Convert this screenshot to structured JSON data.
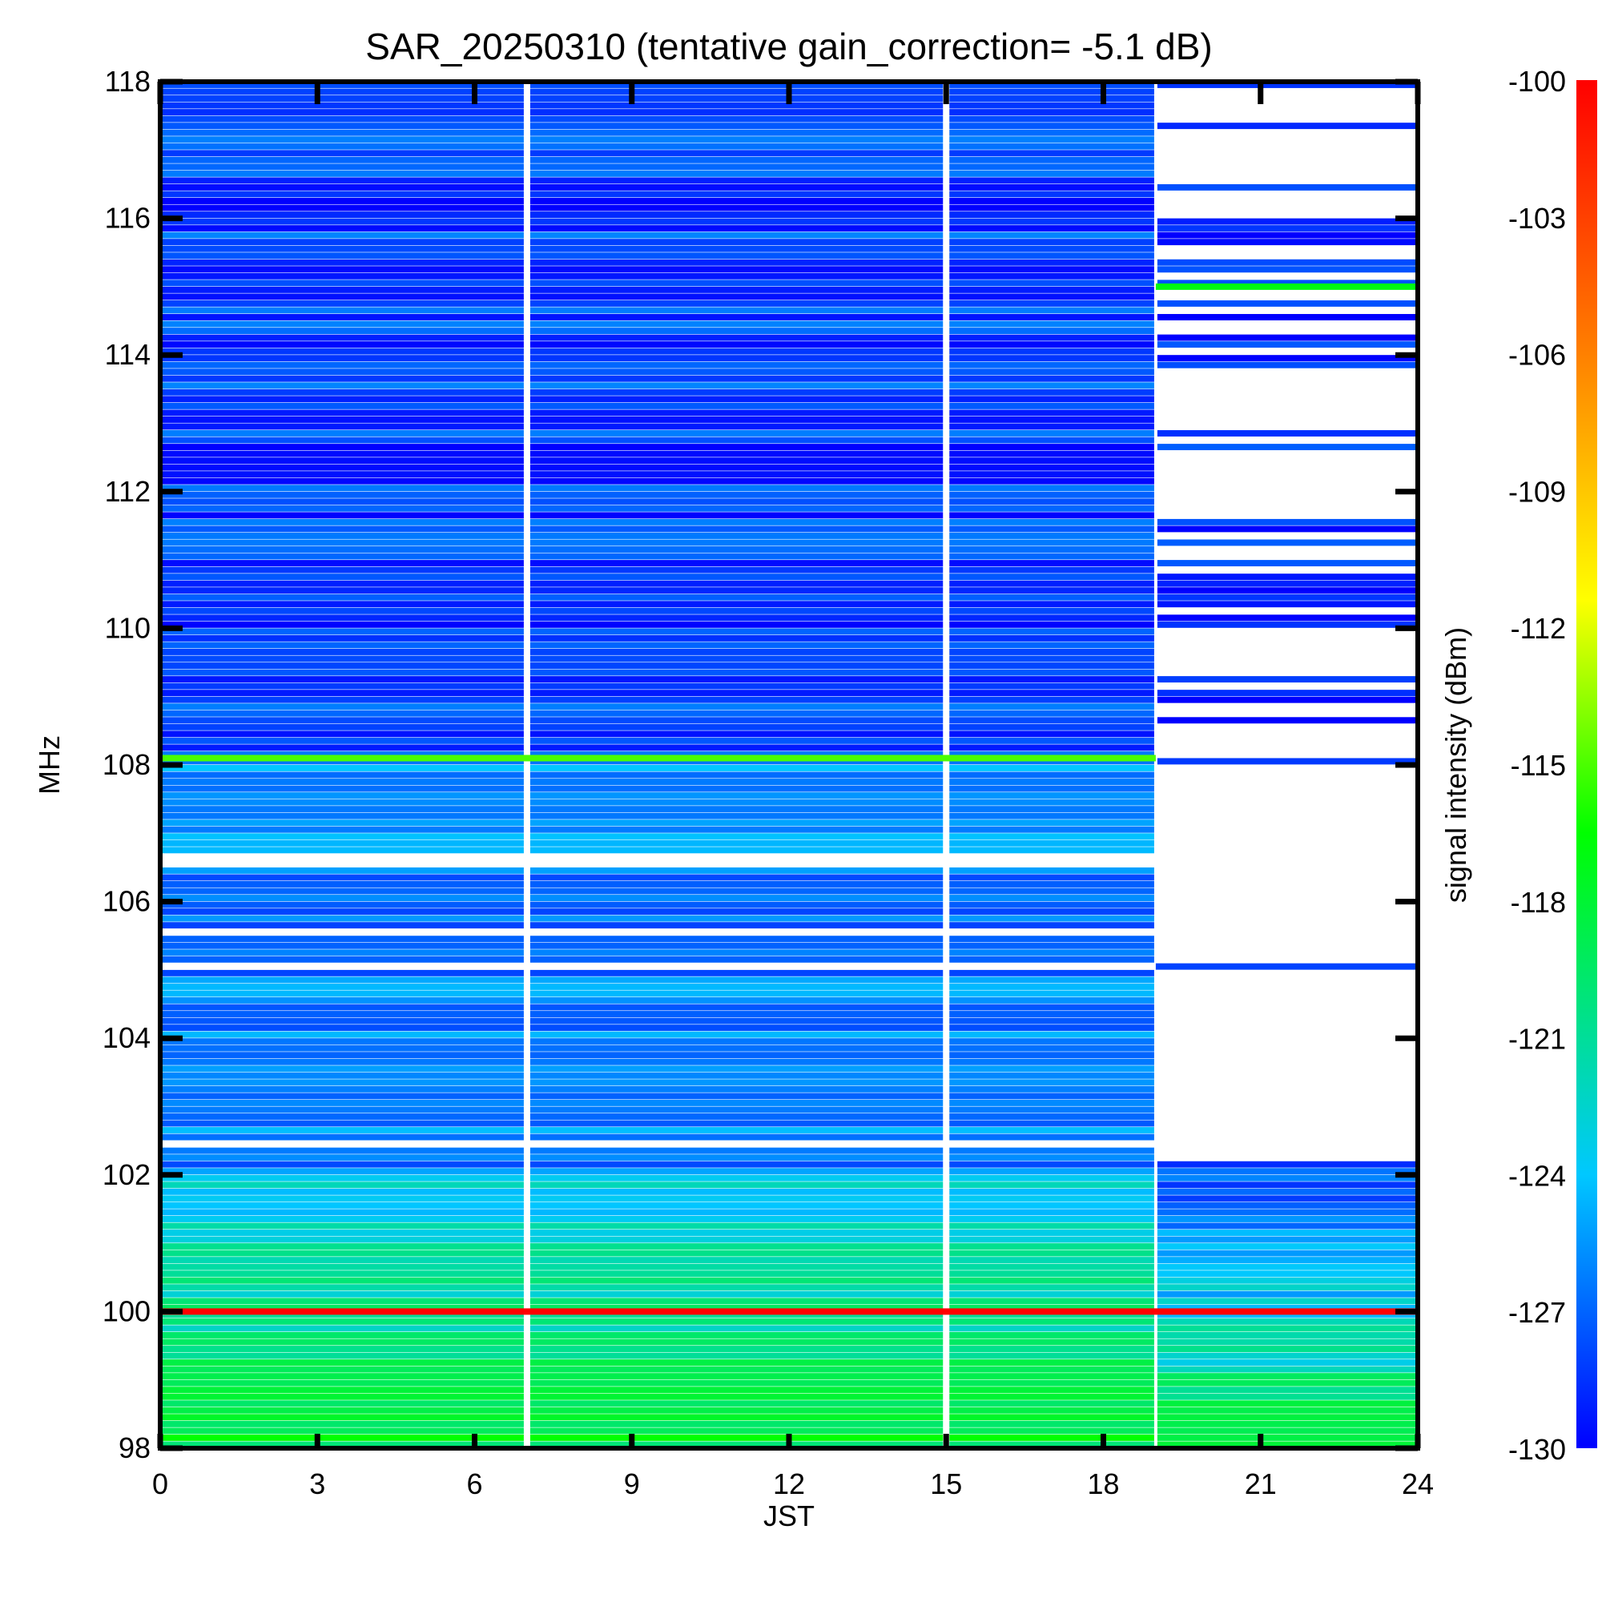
{
  "chart_data": {
    "type": "heatmap",
    "title": "SAR_20250310 (tentative gain_correction= -5.1 dB)",
    "xlabel": "JST",
    "ylabel": "MHz",
    "xlim": [
      0,
      24
    ],
    "ylim": [
      98,
      118
    ],
    "x_ticks": [
      0,
      3,
      6,
      9,
      12,
      15,
      18,
      21,
      24
    ],
    "y_ticks": [
      98,
      100,
      102,
      104,
      106,
      108,
      110,
      112,
      114,
      116,
      118
    ],
    "colorbar": {
      "label": "signal intensity (dBm)",
      "range": [
        -130,
        -100
      ],
      "ticks": [
        -100,
        -103,
        -106,
        -109,
        -112,
        -115,
        -118,
        -121,
        -124,
        -127,
        -130
      ],
      "colormap": [
        "#0000ff",
        "#00c8ff",
        "#00ff00",
        "#ffff00",
        "#ff8000",
        "#ff0000"
      ]
    },
    "data_gaps_jst": [
      7.0,
      15.0
    ],
    "segments": [
      {
        "x": [
          0,
          19
        ],
        "y": [
          98,
          102
        ],
        "level_dbm": -120,
        "note": "green/cyan"
      },
      {
        "x": [
          0,
          19
        ],
        "y": [
          102,
          108
        ],
        "level_dbm": -126,
        "note": "blue/cyan bands"
      },
      {
        "x": [
          0,
          19
        ],
        "y": [
          108,
          118
        ],
        "level_dbm": -128,
        "note": "blue"
      },
      {
        "x": [
          19,
          24
        ],
        "y": [
          98,
          102.2
        ],
        "level_dbm": -122,
        "note": "green to blue"
      },
      {
        "x": [
          19,
          24
        ],
        "y": [
          102.2,
          108
        ],
        "level_dbm": null,
        "note": "empty except 105 MHz line"
      },
      {
        "x": [
          19,
          24
        ],
        "y": [
          108,
          118
        ],
        "level_dbm": -129,
        "note": "sparse blue"
      }
    ],
    "strong_lines": [
      {
        "freq_mhz": 100.0,
        "x": [
          0,
          24
        ],
        "level_dbm": -100
      },
      {
        "freq_mhz": 108.1,
        "x": [
          0,
          19
        ],
        "level_dbm": -115
      },
      {
        "freq_mhz": 115.0,
        "x": [
          19,
          24
        ],
        "level_dbm": -117
      },
      {
        "freq_mhz": 105.05,
        "x": [
          19,
          24
        ],
        "level_dbm": -128
      }
    ]
  }
}
